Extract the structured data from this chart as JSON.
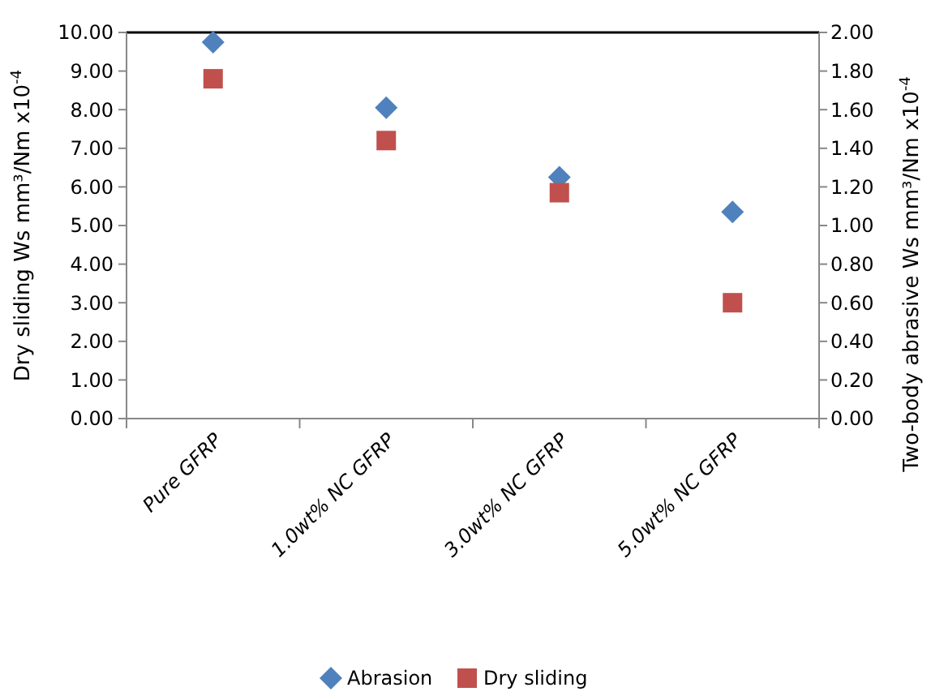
{
  "chart_data": {
    "type": "scatter",
    "categories": [
      "Pure GFRP",
      "1.0wt% NC GFRP",
      "3.0wt% NC GFRP",
      "5.0wt% NC GFRP"
    ],
    "ylabel": "Dry sliding Ws mm³/Nm x10$^{-4}$",
    "y2label": "Two-body abrasive Ws mm³/Nm x10$^{-4}$",
    "ylim": [
      0,
      10
    ],
    "yticks": [
      {
        "value": 0,
        "label": "0.00"
      },
      {
        "value": 1,
        "label": "1.00"
      },
      {
        "value": 2,
        "label": "2.00"
      },
      {
        "value": 3,
        "label": "3.00"
      },
      {
        "value": 4,
        "label": "4.00"
      },
      {
        "value": 5,
        "label": "5.00"
      },
      {
        "value": 6,
        "label": "6.00"
      },
      {
        "value": 7,
        "label": "7.00"
      },
      {
        "value": 8,
        "label": "8.00"
      },
      {
        "value": 9,
        "label": "9.00"
      },
      {
        "value": 10,
        "label": "10.00"
      }
    ],
    "y2lim": [
      0,
      2
    ],
    "y2ticks": [
      {
        "value": 0,
        "label": "0.00"
      },
      {
        "value": 0.2,
        "label": "0.20"
      },
      {
        "value": 0.4,
        "label": "0.40"
      },
      {
        "value": 0.6,
        "label": "0.60"
      },
      {
        "value": 0.8,
        "label": "0.80"
      },
      {
        "value": 1,
        "label": "1.00"
      },
      {
        "value": 1.2,
        "label": "1.20"
      },
      {
        "value": 1.4,
        "label": "1.40"
      },
      {
        "value": 1.6,
        "label": "1.60"
      },
      {
        "value": 1.8,
        "label": "1.80"
      },
      {
        "value": 2,
        "label": "2.00"
      }
    ],
    "series": [
      {
        "name": "Abrasion",
        "color": "#4f81bd",
        "marker": "diamond",
        "axis": "y2",
        "values": [
          1.95,
          1.61,
          1.25,
          1.07
        ]
      },
      {
        "name": "Dry sliding",
        "color": "#c0504d",
        "marker": "square",
        "values": [
          8.8,
          7.2,
          5.85,
          3.0
        ]
      }
    ],
    "grid": false,
    "legend": "bottom"
  }
}
